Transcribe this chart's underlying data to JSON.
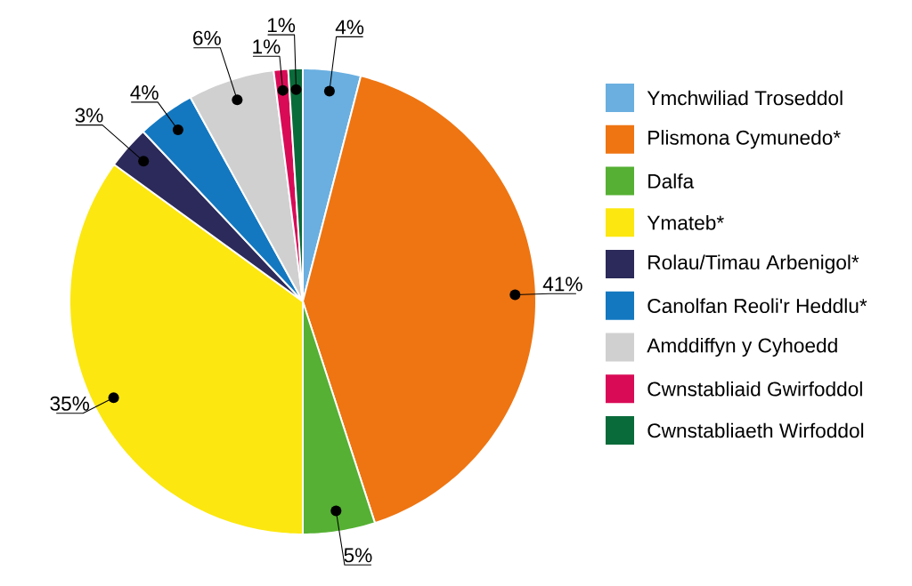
{
  "chart_data": {
    "type": "pie",
    "categories": [
      "Ymchwiliad Troseddol",
      "Plismona Cymunedo*",
      "Dalfa",
      "Ymateb*",
      "Rolau/Timau Arbenigol*",
      "Canolfan Reoli'r Heddlu*",
      "Amddiffyn y Cyhoedd",
      "Cwnstabliaid Gwirfoddol",
      "Cwnstabliaeth Wirfoddol"
    ],
    "values": [
      4,
      41,
      5,
      35,
      3,
      4,
      6,
      1,
      1
    ],
    "value_labels": [
      "4%",
      "41%",
      "5%",
      "35%",
      "3%",
      "4%",
      "6%",
      "1%",
      "1%"
    ],
    "colors": [
      "#6aafe0",
      "#ee7512",
      "#55b033",
      "#fce710",
      "#2b2a5a",
      "#1378c0",
      "#d0d0d0",
      "#d90b57",
      "#0a6b3a"
    ],
    "legend": "right"
  }
}
